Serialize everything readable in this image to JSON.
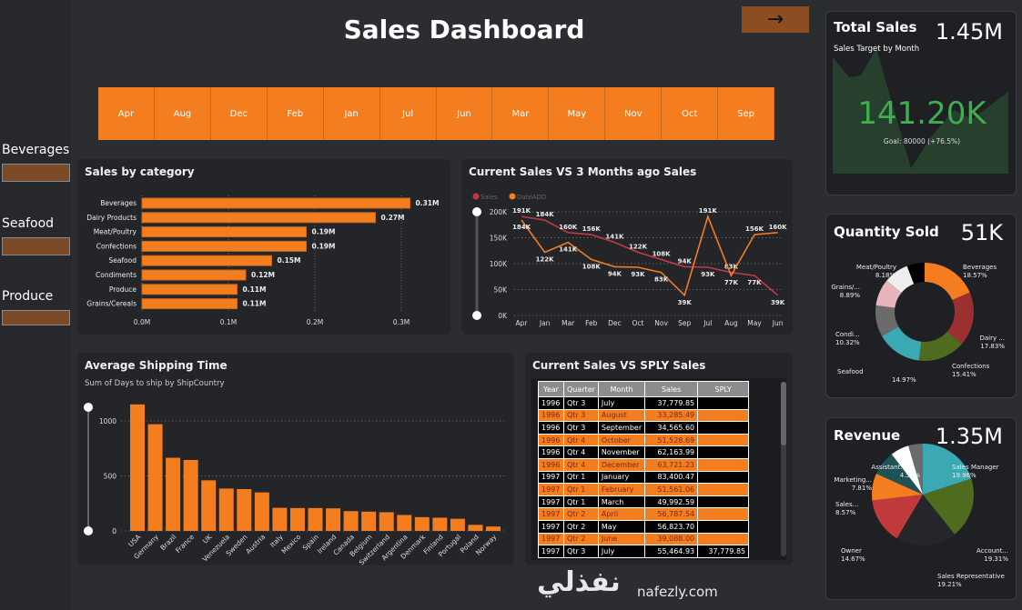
{
  "header": {
    "title": "Sales Dashboard",
    "next_icon": "arrow-right-icon"
  },
  "category_filters": [
    {
      "label": "Beverages"
    },
    {
      "label": "Seafood"
    },
    {
      "label": "Produce"
    }
  ],
  "month_slicer": [
    "Apr",
    "Aug",
    "Dec",
    "Feb",
    "Jan",
    "Jul",
    "Jun",
    "Mar",
    "May",
    "Nov",
    "Oct",
    "Sep"
  ],
  "colors": {
    "accent": "#f47d20",
    "background": "#2b2d31",
    "panel": "#232529",
    "kpi_green": "#3fae4f"
  },
  "total_sales": {
    "title": "Total Sales",
    "value": "1.45M",
    "subtitle": "Sales Target by Month",
    "kpi": "141.20K",
    "goal": "Goal: 80000 (+76.5%)"
  },
  "quantity_sold": {
    "title": "Quantity Sold",
    "value": "51K"
  },
  "revenue": {
    "title": "Revenue",
    "value": "1.35M"
  },
  "table": {
    "title": "Current Sales VS SPLY Sales",
    "columns": [
      "Year",
      "Quarter",
      "Month",
      "Sales",
      "SPLY"
    ],
    "rows": [
      [
        "1996",
        "Qtr 3",
        "July",
        "37,779.85",
        ""
      ],
      [
        "1996",
        "Qtr 3",
        "August",
        "33,285.49",
        ""
      ],
      [
        "1996",
        "Qtr 3",
        "September",
        "34,565.60",
        ""
      ],
      [
        "1996",
        "Qtr 4",
        "October",
        "51,528.69",
        ""
      ],
      [
        "1996",
        "Qtr 4",
        "November",
        "62,163.99",
        ""
      ],
      [
        "1996",
        "Qtr 4",
        "December",
        "63,721.23",
        ""
      ],
      [
        "1997",
        "Qtr 1",
        "January",
        "83,400.47",
        ""
      ],
      [
        "1997",
        "Qtr 1",
        "February",
        "51,561.06",
        ""
      ],
      [
        "1997",
        "Qtr 1",
        "March",
        "49,992.59",
        ""
      ],
      [
        "1997",
        "Qtr 2",
        "April",
        "56,787.54",
        ""
      ],
      [
        "1997",
        "Qtr 2",
        "May",
        "56,823.70",
        ""
      ],
      [
        "1997",
        "Qtr 2",
        "June",
        "39,088.00",
        ""
      ],
      [
        "1997",
        "Qtr 3",
        "July",
        "55,464.93",
        "37,779.85"
      ]
    ]
  },
  "watermark": {
    "arabic": "نفذلي",
    "latin": "nafezly.com"
  },
  "chart_data": [
    {
      "type": "bar",
      "orientation": "horizontal",
      "title": "Sales by category",
      "categories": [
        "Beverages",
        "Dairy Products",
        "Meat/Poultry",
        "Confections",
        "Seafood",
        "Condiments",
        "Produce",
        "Grains/Cereals"
      ],
      "values": [
        0.31,
        0.27,
        0.19,
        0.19,
        0.15,
        0.12,
        0.11,
        0.11
      ],
      "data_labels": [
        "0.31M",
        "0.27M",
        "0.19M",
        "0.19M",
        "0.15M",
        "0.12M",
        "0.11M",
        "0.11M"
      ],
      "xticks": [
        "0.0M",
        "0.1M",
        "0.2M",
        "0.3M"
      ],
      "xlim": [
        0,
        0.3
      ],
      "grid": true
    },
    {
      "type": "line",
      "title": "Current Sales VS 3 Months ago Sales",
      "categories": [
        "Apr",
        "Jan",
        "Mar",
        "Feb",
        "Dec",
        "Oct",
        "Nov",
        "Sep",
        "Jul",
        "Aug",
        "May",
        "Jun"
      ],
      "series": [
        {
          "name": "Sales",
          "color": "#c0394b",
          "values": [
            191,
            184,
            160,
            156,
            141,
            122,
            108,
            94,
            93,
            83,
            77,
            39
          ]
        },
        {
          "name": "DateADD",
          "color": "#f47d20",
          "values": [
            184,
            122,
            141,
            108,
            94,
            93,
            83,
            39,
            191,
            77,
            156,
            160
          ]
        }
      ],
      "yticks": [
        "0K",
        "50K",
        "100K",
        "150K",
        "200K"
      ],
      "ylim": [
        0,
        200
      ],
      "unit": "K",
      "legend": "top-left",
      "grid": true
    },
    {
      "type": "bar",
      "title": "Average Shipping Time",
      "subtitle": "Sum of Days to ship by ShipCountry",
      "categories": [
        "USA",
        "Germany",
        "Brazil",
        "France",
        "UK",
        "Venezuela",
        "Sweden",
        "Austria",
        "Italy",
        "Mexico",
        "Spain",
        "Ireland",
        "Canada",
        "Belgium",
        "Switzerland",
        "Argentina",
        "Denmark",
        "Finland",
        "Portugal",
        "Poland",
        "Norway"
      ],
      "values": [
        1150,
        970,
        665,
        645,
        460,
        385,
        380,
        350,
        210,
        208,
        208,
        205,
        180,
        175,
        170,
        145,
        125,
        120,
        110,
        55,
        40
      ],
      "yticks": [
        "0",
        "500",
        "1000"
      ],
      "ylim": [
        0,
        1200
      ],
      "grid": true
    },
    {
      "type": "pie",
      "variant": "donut",
      "title": "Quantity Sold",
      "slices": [
        {
          "label": "Beverages",
          "pct": 18.57,
          "text": "Beverages 18.57%",
          "color": "#f47d20"
        },
        {
          "label": "Dairy ...",
          "pct": 17.83,
          "text": "Dairy ... 17.83%",
          "color": "#9c3030"
        },
        {
          "label": "Confections",
          "pct": 15.41,
          "text": "Confections 15.41%",
          "color": "#4f6b1e"
        },
        {
          "label": "Seafood",
          "pct": 14.97,
          "text": "Seafood 14.97%",
          "color": "#3aa9b3"
        },
        {
          "label": "Condi...",
          "pct": 10.32,
          "text": "Condi... 10.32%",
          "color": "#6b6b6b"
        },
        {
          "label": "Grains/...",
          "pct": 8.89,
          "text": "Grains/... 8.89%",
          "color": "#e8b4bc"
        },
        {
          "label": "Meat/Poultry",
          "pct": 8.18,
          "text": "Meat/Poultry 8.18%",
          "color": "#eeeeee"
        },
        {
          "label": "",
          "pct": 5.83,
          "text": "",
          "color": "#000000"
        }
      ]
    },
    {
      "type": "pie",
      "title": "Revenue",
      "slices": [
        {
          "label": "Sales Manager",
          "pct": 19.96,
          "text": "Sales Manager 19.96%",
          "color": "#3aa9b3"
        },
        {
          "label": "Account...",
          "pct": 19.31,
          "text": "Account... 19.31%",
          "color": "#4f6b1e"
        },
        {
          "label": "Sales Representative",
          "pct": 19.21,
          "text": "Sales Representative 19.21%",
          "color": "#24262a"
        },
        {
          "label": "Owner",
          "pct": 14.67,
          "text": "Owner 14.67%",
          "color": "#c0393b"
        },
        {
          "label": "Sales...",
          "pct": 8.57,
          "text": "Sales... 8.57%",
          "color": "#f47d20"
        },
        {
          "label": "Marketing...",
          "pct": 7.81,
          "text": "Marketing... 7.81%",
          "color": "#1f5257"
        },
        {
          "label": "",
          "pct": 5.9,
          "text": "",
          "color": "#ffffff"
        },
        {
          "label": "Assistant...",
          "pct": 4.57,
          "text": "Assistant... 4.57%",
          "color": "#6b6b6b"
        }
      ]
    }
  ]
}
